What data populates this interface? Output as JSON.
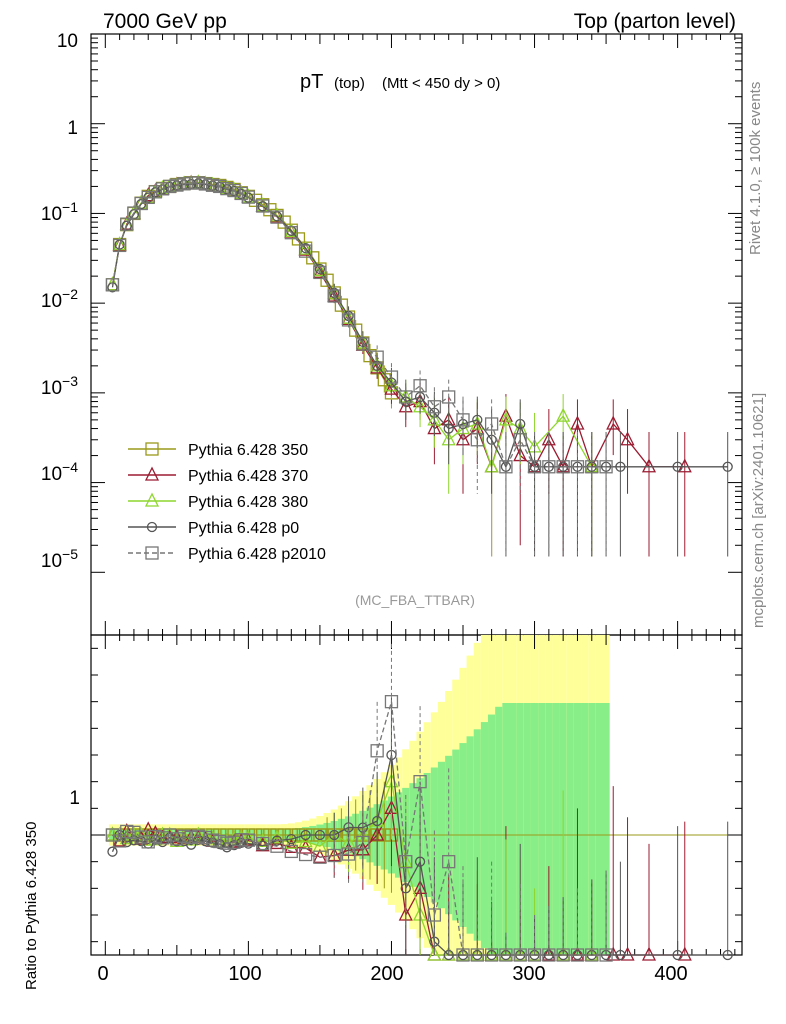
{
  "header": {
    "left": "7000 GeV pp",
    "right": "Top (parton level)"
  },
  "side": {
    "rivet": "Rivet 4.1.0, ≥ 100k events",
    "mcplots": "mcplots.cern.ch [arXiv:2401.10621]"
  },
  "plot": {
    "title_main": "pT",
    "title_sub1": "(top)",
    "title_sub2": "(Mtt < 450 dy > 0)",
    "analysis_tag": "(MC_FBA_TTBAR)",
    "ratio_ylabel": "Ratio to Pythia 6.428 350"
  },
  "chart_data": {
    "type": "line",
    "title": "pT (top) (Mtt < 450 dy > 0)",
    "xlabel": "",
    "ylabel": "",
    "xlim": [
      -10,
      445
    ],
    "ylim": [
      2e-06,
      10
    ],
    "yscale": "log",
    "x_ticks": [
      "0",
      "100",
      "200",
      "300",
      "400"
    ],
    "y_ticks": [
      "10",
      "1",
      "10^-1",
      "10^-2",
      "10^-3",
      "10^-4",
      "10^-5"
    ],
    "ratio_ylim": [
      0.55,
      1.75
    ],
    "ratio_ticks": [
      "1"
    ],
    "legend_position": "lower-left",
    "series": [
      {
        "name": "Pythia 6.428 350",
        "color": "#9a9a1a",
        "marker": "square",
        "dashed": false,
        "x": [
          5,
          10,
          15,
          20,
          25,
          30,
          35,
          40,
          45,
          50,
          55,
          60,
          65,
          70,
          75,
          80,
          85,
          90,
          95,
          100,
          105,
          110,
          115,
          120,
          125,
          130,
          135,
          140,
          145,
          150,
          155,
          160,
          165,
          170,
          175,
          180,
          185,
          190,
          195,
          200
        ],
        "y": [
          0.016,
          0.045,
          0.075,
          0.1,
          0.13,
          0.155,
          0.175,
          0.19,
          0.2,
          0.21,
          0.215,
          0.22,
          0.22,
          0.215,
          0.21,
          0.205,
          0.195,
          0.185,
          0.17,
          0.155,
          0.14,
          0.125,
          0.11,
          0.095,
          0.08,
          0.065,
          0.052,
          0.041,
          0.032,
          0.024,
          0.018,
          0.013,
          0.0095,
          0.007,
          0.005,
          0.0036,
          0.0026,
          0.0019,
          0.0014,
          0.001
        ]
      },
      {
        "name": "Pythia 6.428 370",
        "color": "#9b1b30",
        "marker": "triangle",
        "dashed": false,
        "x": [
          5,
          10,
          15,
          20,
          25,
          30,
          35,
          40,
          45,
          50,
          55,
          60,
          65,
          70,
          75,
          80,
          85,
          90,
          95,
          100,
          110,
          120,
          130,
          140,
          150,
          160,
          170,
          180,
          190,
          200,
          210,
          220,
          230,
          240,
          250,
          260,
          270,
          280,
          290,
          300,
          310,
          320,
          330,
          340,
          355,
          365,
          380,
          405
        ],
        "y": [
          0.016,
          0.044,
          0.076,
          0.1,
          0.128,
          0.158,
          0.176,
          0.188,
          0.198,
          0.208,
          0.212,
          0.218,
          0.218,
          0.212,
          0.205,
          0.2,
          0.19,
          0.18,
          0.166,
          0.152,
          0.12,
          0.092,
          0.062,
          0.039,
          0.022,
          0.012,
          0.0066,
          0.0034,
          0.0019,
          0.0011,
          0.0007,
          0.0008,
          0.0004,
          0.0005,
          0.0003,
          0.0004,
          0.00015,
          0.00055,
          0.0002,
          0.00015,
          0.0003,
          0.00015,
          0.00045,
          0.00015,
          0.00045,
          0.0003,
          0.00015,
          0.00015
        ]
      },
      {
        "name": "Pythia 6.428 380",
        "color": "#8ed62e",
        "marker": "triangle",
        "dashed": false,
        "x": [
          5,
          10,
          15,
          20,
          25,
          30,
          35,
          40,
          45,
          50,
          55,
          60,
          65,
          70,
          75,
          80,
          85,
          90,
          95,
          100,
          110,
          120,
          130,
          140,
          150,
          160,
          170,
          180,
          190,
          200,
          210,
          220,
          230,
          240,
          250,
          260,
          270,
          280,
          290,
          300,
          320,
          340
        ],
        "y": [
          0.016,
          0.045,
          0.074,
          0.1,
          0.13,
          0.152,
          0.172,
          0.19,
          0.2,
          0.205,
          0.213,
          0.216,
          0.22,
          0.214,
          0.207,
          0.2,
          0.19,
          0.182,
          0.168,
          0.153,
          0.122,
          0.094,
          0.063,
          0.04,
          0.023,
          0.013,
          0.0068,
          0.0036,
          0.002,
          0.0012,
          0.0009,
          0.0007,
          0.0005,
          0.0003,
          0.0004,
          0.00045,
          0.00015,
          0.0005,
          0.0004,
          0.00025,
          0.00055,
          0.00015
        ]
      },
      {
        "name": "Pythia 6.428 p0",
        "color": "#555555",
        "marker": "circle",
        "dashed": false,
        "x": [
          5,
          10,
          15,
          20,
          25,
          30,
          35,
          40,
          45,
          50,
          55,
          60,
          65,
          70,
          75,
          80,
          85,
          90,
          95,
          100,
          110,
          120,
          130,
          140,
          150,
          160,
          170,
          180,
          190,
          200,
          210,
          220,
          230,
          240,
          250,
          260,
          270,
          280,
          290,
          300,
          310,
          320,
          330,
          340,
          350,
          360,
          400,
          435
        ],
        "y": [
          0.015,
          0.045,
          0.073,
          0.098,
          0.127,
          0.15,
          0.172,
          0.185,
          0.198,
          0.205,
          0.21,
          0.212,
          0.216,
          0.21,
          0.204,
          0.198,
          0.186,
          0.178,
          0.165,
          0.15,
          0.12,
          0.093,
          0.064,
          0.041,
          0.024,
          0.013,
          0.0072,
          0.0037,
          0.002,
          0.0013,
          0.0008,
          0.0009,
          0.0006,
          0.0004,
          0.00045,
          0.0005,
          0.0003,
          0.00015,
          0.00045,
          0.00015,
          0.00015,
          0.00015,
          0.00015,
          0.00015,
          0.00015,
          0.00015,
          0.00015,
          0.00015
        ]
      },
      {
        "name": "Pythia 6.428 p2010",
        "color": "#777777",
        "marker": "square",
        "dashed": true,
        "x": [
          5,
          10,
          15,
          20,
          25,
          30,
          35,
          40,
          45,
          50,
          55,
          60,
          65,
          70,
          75,
          80,
          85,
          90,
          95,
          100,
          110,
          120,
          130,
          140,
          150,
          160,
          170,
          180,
          190,
          200,
          210,
          220,
          230,
          240,
          250,
          260,
          270,
          280,
          290,
          300,
          310,
          320,
          330,
          340,
          350
        ],
        "y": [
          0.016,
          0.044,
          0.076,
          0.101,
          0.129,
          0.151,
          0.174,
          0.188,
          0.2,
          0.207,
          0.214,
          0.218,
          0.219,
          0.213,
          0.206,
          0.2,
          0.189,
          0.18,
          0.167,
          0.152,
          0.121,
          0.091,
          0.061,
          0.038,
          0.022,
          0.012,
          0.0065,
          0.0035,
          0.0025,
          0.0015,
          0.0009,
          0.0012,
          0.0007,
          0.0009,
          0.0005,
          0.0003,
          0.00045,
          0.00015,
          0.0003,
          0.00015,
          0.00015,
          0.00015,
          0.00015,
          0.00015,
          0.00015
        ]
      }
    ]
  }
}
